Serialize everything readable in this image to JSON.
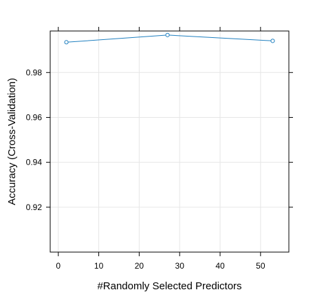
{
  "chart_data": {
    "type": "line",
    "title": "",
    "xlabel": "#Randomly Selected Predictors",
    "ylabel": "Accuracy (Cross-Validation)",
    "xlim": [
      -2,
      57
    ],
    "ylim": [
      0.9,
      0.9985
    ],
    "xticks": [
      0,
      10,
      20,
      30,
      40,
      50
    ],
    "yticks": [
      0.92,
      0.94,
      0.96,
      0.98
    ],
    "xtick_labels": [
      "0",
      "10",
      "20",
      "30",
      "40",
      "50"
    ],
    "ytick_labels": [
      "0.92",
      "0.94",
      "0.96",
      "0.98"
    ],
    "x": [
      2,
      27,
      53
    ],
    "series": [
      {
        "values": [
          0.9935,
          0.9967,
          0.9941
        ],
        "color": "#1f7fbf"
      }
    ],
    "grid": true,
    "legend": "none"
  }
}
